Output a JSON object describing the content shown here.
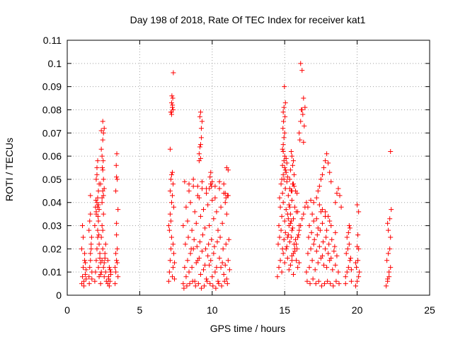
{
  "chart_data": {
    "type": "scatter",
    "title": "Day 198 of 2018, Rate Of TEC Index for receiver kat1",
    "xlabel": "GPS time / hours",
    "ylabel": "ROTI / TECUs",
    "xlim": [
      0,
      25
    ],
    "ylim": [
      0,
      0.11
    ],
    "xticks": [
      "0",
      "5",
      "10",
      "15",
      "20",
      "25"
    ],
    "yticks": [
      "0",
      "0.01",
      "0.02",
      "0.03",
      "0.04",
      "0.05",
      "0.06",
      "0.07",
      "0.08",
      "0.09",
      "0.1",
      "0.11"
    ],
    "grid": true,
    "marker": "plus",
    "color": "#ff0000",
    "series": [
      {
        "x": [
          1.0,
          1.05,
          1.1,
          1.15,
          1.2,
          1.25,
          1.3,
          1.0,
          1.1,
          1.2,
          1.3,
          1.05,
          1.15,
          1.25,
          1.5,
          1.55,
          1.6,
          1.65,
          1.7,
          1.5,
          1.6,
          1.7,
          1.55,
          1.65,
          1.6,
          1.52,
          1.68,
          1.9,
          1.95,
          2.0,
          2.05,
          2.1,
          2.15,
          2.2,
          2.25,
          2.3,
          1.9,
          2.0,
          2.1,
          2.2,
          2.3,
          1.95,
          2.05,
          2.15,
          2.25,
          2.0,
          2.05,
          2.1,
          2.15,
          2.2,
          2.0,
          2.1,
          2.05,
          2.15,
          1.98,
          2.12,
          2.18,
          2.3,
          2.35,
          2.4,
          2.45,
          2.5,
          2.55,
          2.6,
          2.65,
          2.7,
          2.35,
          2.45,
          2.55,
          2.65,
          2.4,
          2.5,
          2.6,
          2.4,
          2.45,
          2.5,
          2.42,
          2.48,
          2.4,
          2.45,
          2.5,
          2.35,
          2.55,
          2.45,
          2.3,
          2.8,
          2.85,
          2.9,
          2.95,
          3.0,
          2.8,
          2.9,
          3.0,
          2.85,
          2.95,
          3.3,
          3.35,
          3.4,
          3.45,
          3.5,
          3.3,
          3.4,
          3.5,
          3.35,
          3.45,
          3.4,
          3.38,
          3.42,
          1.6,
          2.2,
          2.1,
          2.5,
          2.45,
          2.4,
          3.4,
          3.35,
          3.45,
          2.35,
          2.55
        ],
        "y": [
          0.005,
          0.008,
          0.012,
          0.006,
          0.015,
          0.009,
          0.007,
          0.02,
          0.025,
          0.018,
          0.011,
          0.03,
          0.004,
          0.014,
          0.008,
          0.012,
          0.018,
          0.022,
          0.01,
          0.028,
          0.015,
          0.007,
          0.032,
          0.02,
          0.043,
          0.005,
          0.025,
          0.006,
          0.01,
          0.015,
          0.02,
          0.025,
          0.012,
          0.008,
          0.018,
          0.014,
          0.03,
          0.035,
          0.028,
          0.022,
          0.009,
          0.038,
          0.04,
          0.032,
          0.016,
          0.05,
          0.055,
          0.058,
          0.045,
          0.048,
          0.036,
          0.042,
          0.052,
          0.039,
          0.041,
          0.034,
          0.026,
          0.005,
          0.01,
          0.015,
          0.02,
          0.012,
          0.008,
          0.018,
          0.022,
          0.006,
          0.025,
          0.028,
          0.014,
          0.01,
          0.03,
          0.035,
          0.016,
          0.04,
          0.045,
          0.05,
          0.055,
          0.058,
          0.06,
          0.067,
          0.07,
          0.071,
          0.072,
          0.075,
          0.048,
          0.005,
          0.008,
          0.012,
          0.006,
          0.01,
          0.015,
          0.004,
          0.009,
          0.007,
          0.011,
          0.005,
          0.01,
          0.015,
          0.02,
          0.008,
          0.012,
          0.031,
          0.037,
          0.045,
          0.05,
          0.051,
          0.056,
          0.061,
          0.035,
          0.037,
          0.038,
          0.043,
          0.054,
          0.042,
          0.026,
          0.018,
          0.014,
          0.063,
          0.046
        ]
      },
      {
        "x": [
          7.0,
          7.05,
          7.1,
          7.15,
          7.2,
          7.25,
          7.3,
          7.35,
          7.4,
          7.0,
          7.1,
          7.2,
          7.3,
          7.4,
          7.05,
          7.15,
          7.25,
          7.35,
          7.1,
          7.15,
          7.2,
          7.25,
          7.3,
          7.1,
          7.2,
          7.3,
          7.15,
          7.25,
          7.2,
          7.22,
          7.28,
          7.18,
          7.32,
          7.26
        ],
        "y": [
          0.006,
          0.01,
          0.015,
          0.02,
          0.025,
          0.008,
          0.012,
          0.018,
          0.007,
          0.03,
          0.035,
          0.04,
          0.022,
          0.014,
          0.028,
          0.032,
          0.043,
          0.038,
          0.045,
          0.05,
          0.052,
          0.053,
          0.048,
          0.063,
          0.078,
          0.08,
          0.079,
          0.081,
          0.083,
          0.086,
          0.085,
          0.079,
          0.096,
          0.082
        ]
      },
      {
        "x": [
          8.0,
          8.2,
          8.4,
          8.6,
          8.8,
          9.0,
          9.2,
          9.4,
          9.6,
          9.8,
          10.0,
          10.2,
          10.4,
          10.6,
          10.8,
          11.0,
          11.2,
          8.1,
          8.3,
          8.5,
          8.7,
          8.9,
          9.1,
          9.3,
          9.5,
          9.7,
          9.9,
          10.1,
          10.3,
          10.5,
          10.7,
          10.9,
          11.1,
          8.05,
          8.25,
          8.45,
          8.65,
          8.85,
          9.05,
          9.25,
          9.45,
          9.65,
          9.85,
          10.05,
          10.25,
          10.45,
          10.65,
          10.85,
          11.05,
          8.15,
          8.35,
          8.55,
          8.75,
          8.95,
          9.15,
          9.35,
          9.55,
          9.75,
          9.95,
          10.15,
          10.35,
          10.55,
          10.75,
          10.95,
          11.15,
          8.0,
          8.3,
          8.6,
          8.9,
          9.2,
          9.5,
          9.8,
          10.1,
          10.4,
          10.7,
          11.0,
          8.2,
          8.5,
          8.8,
          9.1,
          9.4,
          9.7,
          10.0,
          10.3,
          10.6,
          10.9,
          8.4,
          8.7,
          9.0,
          9.3,
          9.6,
          9.9,
          10.2,
          10.5,
          10.8,
          11.1,
          8.1,
          8.4,
          8.7,
          9.0,
          9.3,
          9.6,
          9.9,
          10.2,
          10.5,
          10.8,
          9.1,
          9.15,
          9.2,
          9.25,
          9.3,
          9.15,
          9.2,
          9.25,
          9.1,
          9.2,
          9.8,
          9.9,
          10.0,
          9.85,
          9.95,
          10.9,
          11.0,
          11.1,
          11.05,
          10.95
        ],
        "y": [
          0.005,
          0.008,
          0.01,
          0.012,
          0.006,
          0.015,
          0.009,
          0.011,
          0.007,
          0.013,
          0.008,
          0.01,
          0.006,
          0.012,
          0.009,
          0.007,
          0.011,
          0.012,
          0.015,
          0.018,
          0.02,
          0.014,
          0.016,
          0.019,
          0.013,
          0.017,
          0.015,
          0.018,
          0.012,
          0.016,
          0.014,
          0.013,
          0.015,
          0.003,
          0.004,
          0.005,
          0.006,
          0.004,
          0.005,
          0.003,
          0.004,
          0.006,
          0.005,
          0.004,
          0.003,
          0.005,
          0.004,
          0.006,
          0.005,
          0.022,
          0.025,
          0.02,
          0.024,
          0.021,
          0.023,
          0.026,
          0.02,
          0.022,
          0.024,
          0.021,
          0.023,
          0.025,
          0.02,
          0.022,
          0.024,
          0.03,
          0.032,
          0.028,
          0.031,
          0.034,
          0.029,
          0.03,
          0.033,
          0.028,
          0.031,
          0.035,
          0.038,
          0.04,
          0.036,
          0.042,
          0.037,
          0.039,
          0.041,
          0.036,
          0.038,
          0.04,
          0.045,
          0.047,
          0.043,
          0.046,
          0.044,
          0.048,
          0.042,
          0.046,
          0.044,
          0.043,
          0.049,
          0.048,
          0.05,
          0.047,
          0.049,
          0.046,
          0.048,
          0.047,
          0.049,
          0.048,
          0.058,
          0.064,
          0.065,
          0.072,
          0.075,
          0.077,
          0.079,
          0.068,
          0.061,
          0.059,
          0.046,
          0.053,
          0.049,
          0.051,
          0.047,
          0.044,
          0.055,
          0.054,
          0.043,
          0.042
        ]
      },
      {
        "x": [
          14.5,
          14.6,
          14.7,
          14.8,
          14.9,
          15.0,
          15.1,
          15.2,
          15.3,
          15.4,
          15.5,
          15.6,
          15.7,
          15.8,
          15.9,
          16.0,
          14.55,
          14.65,
          14.75,
          14.85,
          14.95,
          15.05,
          15.15,
          15.25,
          15.35,
          15.45,
          15.55,
          15.65,
          15.75,
          15.85,
          15.95,
          14.6,
          14.8,
          15.0,
          15.2,
          15.4,
          15.6,
          15.8,
          16.0,
          14.7,
          14.9,
          15.1,
          15.3,
          15.5,
          15.7,
          15.9,
          14.65,
          14.85,
          15.05,
          15.25,
          15.45,
          15.65,
          15.85,
          14.75,
          14.95,
          15.15,
          15.35,
          15.55,
          15.75,
          14.8,
          14.9,
          15.0,
          15.1,
          15.2,
          14.85,
          14.95,
          15.05,
          15.15,
          15.0,
          14.9,
          15.1,
          14.85,
          14.9,
          14.95,
          15.0,
          14.88,
          14.92,
          15.02,
          14.9,
          14.95,
          15.05,
          14.98,
          15.2,
          15.3,
          15.4,
          15.5,
          15.25,
          15.35,
          15.45,
          15.5,
          15.6,
          15.7,
          15.8,
          15.9,
          16.0,
          16.1,
          16.2,
          16.3,
          16.4,
          16.5,
          16.0,
          16.1,
          16.2,
          16.3,
          16.15,
          16.25,
          16.05,
          16.35,
          16.2,
          16.1,
          16.3,
          16.4,
          15.4,
          15.5,
          15.6,
          15.45,
          15.55,
          15.35,
          15.65,
          15.5,
          15.6
        ],
        "y": [
          0.008,
          0.012,
          0.015,
          0.01,
          0.018,
          0.014,
          0.02,
          0.016,
          0.011,
          0.013,
          0.017,
          0.009,
          0.019,
          0.015,
          0.012,
          0.014,
          0.022,
          0.025,
          0.028,
          0.02,
          0.024,
          0.027,
          0.021,
          0.026,
          0.023,
          0.025,
          0.029,
          0.022,
          0.024,
          0.02,
          0.026,
          0.03,
          0.034,
          0.032,
          0.035,
          0.031,
          0.033,
          0.036,
          0.03,
          0.038,
          0.04,
          0.037,
          0.039,
          0.041,
          0.038,
          0.036,
          0.042,
          0.044,
          0.046,
          0.043,
          0.045,
          0.047,
          0.044,
          0.048,
          0.05,
          0.049,
          0.046,
          0.048,
          0.045,
          0.05,
          0.052,
          0.055,
          0.053,
          0.051,
          0.056,
          0.058,
          0.054,
          0.057,
          0.06,
          0.062,
          0.059,
          0.063,
          0.065,
          0.068,
          0.07,
          0.072,
          0.075,
          0.077,
          0.079,
          0.081,
          0.083,
          0.09,
          0.025,
          0.03,
          0.035,
          0.028,
          0.033,
          0.038,
          0.032,
          0.015,
          0.018,
          0.02,
          0.022,
          0.025,
          0.028,
          0.03,
          0.033,
          0.035,
          0.038,
          0.04,
          0.07,
          0.075,
          0.08,
          0.085,
          0.08,
          0.078,
          0.067,
          0.073,
          0.097,
          0.1,
          0.066,
          0.081,
          0.054,
          0.06,
          0.058,
          0.062,
          0.056,
          0.05,
          0.052,
          0.045,
          0.048
        ]
      },
      {
        "x": [
          16.5,
          16.7,
          16.9,
          17.1,
          17.3,
          17.5,
          17.7,
          17.9,
          18.1,
          18.3,
          18.5,
          18.7,
          16.6,
          16.8,
          17.0,
          17.2,
          17.4,
          17.6,
          17.8,
          18.0,
          18.2,
          18.4,
          18.6,
          16.55,
          16.75,
          16.95,
          17.15,
          17.35,
          17.55,
          17.75,
          17.95,
          18.15,
          18.35,
          18.55,
          18.75,
          16.65,
          16.85,
          17.05,
          17.25,
          17.45,
          17.65,
          17.85,
          18.05,
          18.25,
          18.45,
          16.7,
          17.0,
          17.3,
          17.6,
          17.9,
          18.2,
          18.5,
          16.9,
          17.2,
          17.5,
          17.8,
          18.1,
          17.3,
          17.4,
          17.5,
          17.6,
          17.7,
          17.8,
          17.9,
          18.0,
          18.1,
          18.2,
          18.5,
          18.6,
          18.7,
          18.8,
          18.9,
          16.6,
          16.8,
          17.0,
          17.2,
          17.4,
          17.6,
          17.8,
          18.0
        ],
        "y": [
          0.01,
          0.012,
          0.015,
          0.011,
          0.014,
          0.016,
          0.013,
          0.012,
          0.015,
          0.011,
          0.013,
          0.01,
          0.018,
          0.02,
          0.022,
          0.019,
          0.021,
          0.017,
          0.02,
          0.018,
          0.016,
          0.019,
          0.017,
          0.006,
          0.005,
          0.007,
          0.005,
          0.006,
          0.004,
          0.005,
          0.006,
          0.005,
          0.004,
          0.006,
          0.005,
          0.025,
          0.027,
          0.024,
          0.026,
          0.028,
          0.023,
          0.025,
          0.022,
          0.024,
          0.021,
          0.03,
          0.032,
          0.029,
          0.031,
          0.028,
          0.03,
          0.027,
          0.035,
          0.033,
          0.036,
          0.034,
          0.032,
          0.045,
          0.047,
          0.05,
          0.052,
          0.055,
          0.058,
          0.061,
          0.057,
          0.053,
          0.049,
          0.04,
          0.044,
          0.046,
          0.043,
          0.038,
          0.038,
          0.041,
          0.04,
          0.042,
          0.039,
          0.037,
          0.036,
          0.034
        ]
      },
      {
        "x": [
          19.2,
          19.3,
          19.4,
          19.5,
          19.6,
          19.25,
          19.35,
          19.45,
          19.55,
          19.3,
          19.4,
          19.5,
          19.2,
          19.6,
          19.45,
          19.9,
          20.0,
          20.1,
          20.15,
          19.95,
          20.05,
          20.1,
          20.0,
          19.9,
          20.05,
          20.1,
          20.0,
          22.0,
          22.1,
          22.2,
          22.3,
          22.05,
          22.15,
          22.25,
          22.1,
          22.2,
          22.3,
          22.15,
          22.1,
          22.35,
          22.25,
          22.3
        ],
        "y": [
          0.008,
          0.01,
          0.012,
          0.015,
          0.011,
          0.018,
          0.02,
          0.022,
          0.016,
          0.025,
          0.027,
          0.029,
          0.005,
          0.006,
          0.03,
          0.004,
          0.006,
          0.008,
          0.01,
          0.012,
          0.015,
          0.02,
          0.021,
          0.014,
          0.026,
          0.036,
          0.039,
          0.004,
          0.007,
          0.01,
          0.012,
          0.015,
          0.018,
          0.02,
          0.006,
          0.008,
          0.025,
          0.028,
          0.031,
          0.037,
          0.033,
          0.062
        ]
      }
    ]
  }
}
